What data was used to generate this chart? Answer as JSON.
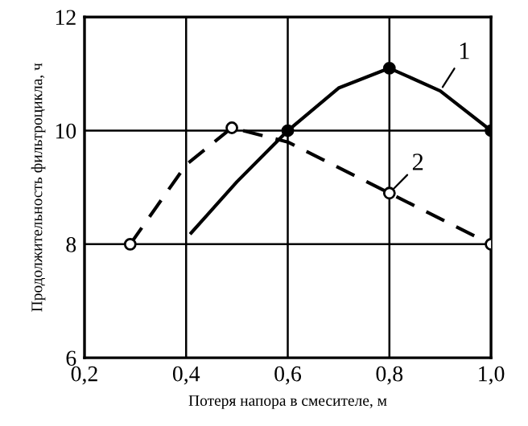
{
  "chart_data": {
    "type": "line",
    "xlabel": "Потеря напора в смесителе, м",
    "ylabel": "Продолжительность фильтроцикла, ч",
    "xlim": [
      0.2,
      1.0
    ],
    "ylim": [
      6,
      12
    ],
    "xticks": [
      {
        "value": 0.2,
        "label": "0,2"
      },
      {
        "value": 0.4,
        "label": "0,4"
      },
      {
        "value": 0.6,
        "label": "0,6"
      },
      {
        "value": 0.8,
        "label": "0,8"
      },
      {
        "value": 1.0,
        "label": "1,0"
      }
    ],
    "yticks": [
      6,
      8,
      10,
      12
    ],
    "grid": true,
    "series": [
      {
        "name": "1",
        "color": "#000000",
        "line_style": "solid",
        "marker": "none",
        "x": [
          0.41,
          0.5,
          0.6,
          0.7,
          0.8,
          0.9,
          1.0
        ],
        "values": [
          8.2,
          9.1,
          10,
          10.75,
          11.1,
          10.7,
          10
        ]
      },
      {
        "type": "scatter",
        "color": "#000000",
        "marker": "circle",
        "x": [
          0.6,
          0.8,
          1.0
        ],
        "values": [
          10,
          11.1,
          10
        ]
      },
      {
        "name": "2",
        "color": "#000000",
        "line_style": "dashed",
        "marker": "none",
        "x": [
          0.29,
          0.4,
          0.49,
          0.6,
          0.8,
          1.0
        ],
        "values": [
          8,
          9.4,
          10.05,
          9.8,
          8.9,
          8
        ]
      },
      {
        "type": "scatter",
        "color": "#000000",
        "marker": "circle",
        "x": [
          0.29,
          0.49,
          0.8,
          1.0
        ],
        "values": [
          8,
          10.05,
          8.9,
          8
        ]
      }
    ]
  }
}
